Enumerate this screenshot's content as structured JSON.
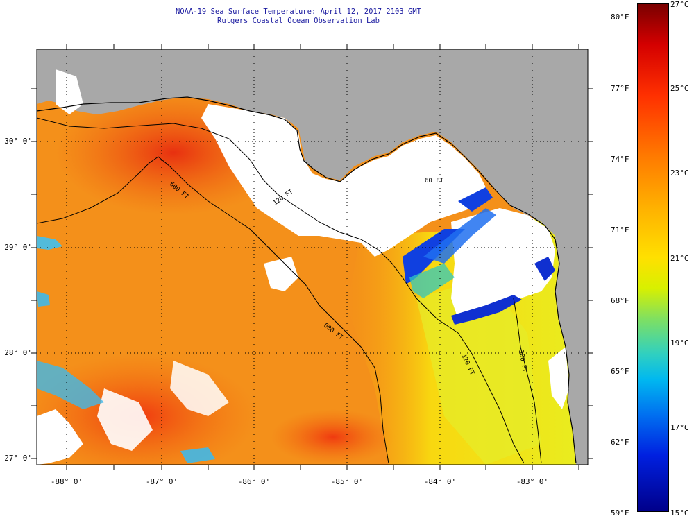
{
  "header": {
    "title_line1": "NOAA-19 Sea Surface Temperature:  April 12, 2017 2103 GMT",
    "title_line2": "Rutgers Coastal Ocean Observation Lab"
  },
  "axes": {
    "latitude_labels": [
      "30° 0'",
      "29° 0'",
      "28° 0'",
      "27° 0'"
    ],
    "longitude_labels": [
      "-88° 0'",
      "-87° 0'",
      "-86° 0'",
      "-85° 0'",
      "-84° 0'",
      "-83° 0'"
    ]
  },
  "contours": {
    "c60": "60 FT",
    "c120": "120 FT",
    "c600": "600 FT",
    "c300": "300 FT"
  },
  "colorbar": {
    "fahrenheit_labels": [
      "80°F",
      "77°F",
      "74°F",
      "71°F",
      "68°F",
      "65°F",
      "62°F",
      "59°F"
    ],
    "celsius_labels": [
      "27°C",
      "25°C",
      "23°C",
      "21°C",
      "19°C",
      "17°C",
      "15°C"
    ],
    "min_c": 15,
    "max_c": 27
  },
  "colors": {
    "land": "#a8a8a8",
    "cloud": "#ffffff",
    "title_text": "#1a1aa0"
  }
}
